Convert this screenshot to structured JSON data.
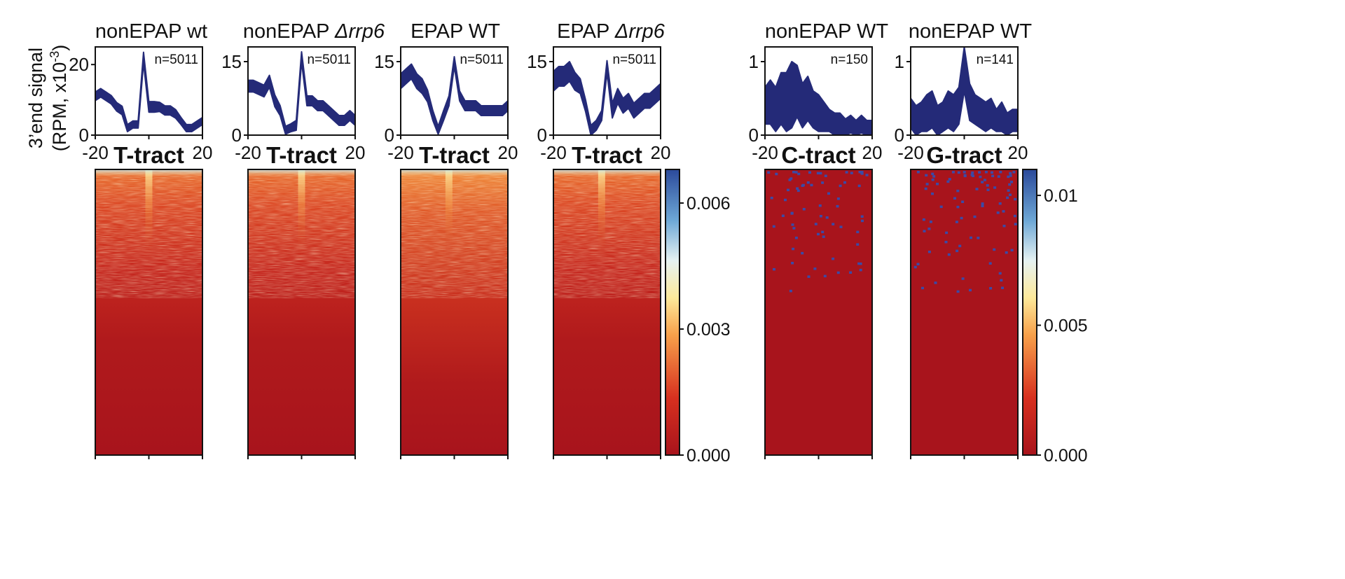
{
  "y_axis_label": {
    "line1": "3’end signal",
    "line2": "(RPM, x10",
    "exp": "-3",
    "close": ")"
  },
  "x_ticks": [
    "-20",
    "20"
  ],
  "colors": {
    "trace": "#242a78",
    "hm_low": "#a8141c",
    "hm_mid": "#fde99a",
    "hm_high": "#2b4a9b",
    "dot": "#3b4aa6"
  },
  "colorbars": [
    {
      "ticks": [
        "0.006",
        "0.003",
        "0.000"
      ],
      "values": [
        0.006,
        0.003,
        0.0
      ],
      "max": 0.0068
    },
    {
      "ticks": [
        "0.01",
        "0.005",
        "0.000"
      ],
      "values": [
        0.01,
        0.005,
        0.0
      ],
      "max": 0.011
    }
  ],
  "chart_data": [
    {
      "type": "area",
      "title_main": "nonEPAP wt",
      "title_italic": "",
      "n_label": "n=5011",
      "tract": "T-tract",
      "xlabel": "",
      "ylabel": "3’end signal (RPM, x10-3)",
      "xlim": [
        -20,
        20
      ],
      "ylim": [
        0,
        25
      ],
      "yticks": [
        "20",
        "0"
      ],
      "ytick_values": [
        20,
        0
      ],
      "x": [
        -20,
        -18,
        -16,
        -14,
        -12,
        -10,
        -8,
        -6,
        -4,
        -2,
        0,
        2,
        4,
        6,
        8,
        10,
        12,
        14,
        16,
        18,
        20
      ],
      "mean": [
        11,
        12,
        11,
        10,
        8,
        7,
        2,
        3,
        3,
        22,
        8,
        8,
        8,
        7,
        7,
        6,
        4,
        2,
        2,
        3,
        4
      ],
      "spread": [
        1.2,
        1.2,
        1.2,
        1.2,
        1.2,
        1.2,
        1,
        1,
        1,
        1.5,
        1.5,
        1.5,
        1.3,
        1.3,
        1.3,
        1.2,
        1,
        1,
        1,
        1,
        1
      ],
      "heatmap": {
        "type": "heatmap",
        "pattern": "T-tract",
        "colorbar": 0,
        "peak_x": 0,
        "rows": 5011
      }
    },
    {
      "type": "area",
      "title_main": "nonEPAP ",
      "title_italic": "Δrrp6",
      "n_label": "n=5011",
      "tract": "T-tract",
      "xlabel": "",
      "ylabel": "",
      "xlim": [
        -20,
        20
      ],
      "ylim": [
        0,
        18
      ],
      "yticks": [
        "15",
        "0"
      ],
      "ytick_values": [
        15,
        0
      ],
      "x": [
        -20,
        -18,
        -16,
        -14,
        -12,
        -10,
        -8,
        -6,
        -4,
        -2,
        0,
        2,
        4,
        6,
        8,
        10,
        12,
        14,
        16,
        18,
        20
      ],
      "mean": [
        10,
        10,
        9.5,
        9,
        11,
        7,
        5,
        1,
        1.5,
        2,
        16,
        7,
        7,
        6,
        6,
        5,
        4,
        3,
        3,
        4,
        3
      ],
      "spread": [
        1.2,
        1.2,
        1.2,
        1.2,
        1.2,
        1.2,
        1,
        0.8,
        0.8,
        1,
        1,
        1,
        1,
        1,
        1,
        1,
        1,
        1,
        1,
        1,
        1
      ],
      "heatmap": {
        "type": "heatmap",
        "pattern": "T-tract",
        "colorbar": 0,
        "peak_x": 0,
        "rows": 5011
      }
    },
    {
      "type": "area",
      "title_main": "EPAP WT",
      "title_italic": "",
      "n_label": "n=5011",
      "tract": "T-tract",
      "xlabel": "",
      "ylabel": "",
      "xlim": [
        -20,
        20
      ],
      "ylim": [
        0,
        18
      ],
      "yticks": [
        "15",
        "0"
      ],
      "ytick_values": [
        15,
        0
      ],
      "x": [
        -20,
        -18,
        -16,
        -14,
        -12,
        -10,
        -8,
        -6,
        -4,
        -2,
        0,
        2,
        4,
        6,
        8,
        10,
        12,
        14,
        16,
        18,
        20
      ],
      "mean": [
        11,
        12,
        13,
        11,
        10,
        8,
        4,
        1,
        4,
        7,
        15,
        8,
        6,
        6,
        6,
        5,
        5,
        5,
        5,
        5,
        6
      ],
      "spread": [
        1.5,
        1.5,
        1.5,
        1.5,
        1.5,
        1.2,
        1,
        0.8,
        1,
        1,
        1,
        1,
        1,
        1,
        1,
        1,
        1,
        1,
        1,
        1,
        1
      ],
      "heatmap": {
        "type": "heatmap",
        "pattern": "T-tract",
        "colorbar": 0,
        "peak_x": -2,
        "rows": 5011
      }
    },
    {
      "type": "area",
      "title_main": "EPAP ",
      "title_italic": "Δrrp6",
      "n_label": "n=5011",
      "tract": "T-tract",
      "xlabel": "",
      "ylabel": "",
      "xlim": [
        -20,
        20
      ],
      "ylim": [
        0,
        18
      ],
      "yticks": [
        "15",
        "0"
      ],
      "ytick_values": [
        15,
        0
      ],
      "x": [
        -20,
        -18,
        -16,
        -14,
        -12,
        -10,
        -8,
        -6,
        -4,
        -2,
        0,
        2,
        4,
        6,
        8,
        10,
        12,
        14,
        16,
        18,
        20
      ],
      "mean": [
        11,
        12,
        12,
        13,
        11,
        10,
        6,
        1,
        2,
        4,
        14,
        5,
        8,
        6,
        7,
        5,
        6,
        7,
        7,
        8,
        9
      ],
      "spread": [
        2,
        2,
        2,
        2,
        1.8,
        1.5,
        1.2,
        1,
        1,
        1,
        1.2,
        1.5,
        1.5,
        1.5,
        1.5,
        1.5,
        1.5,
        1.5,
        1.5,
        1.5,
        1.5
      ],
      "heatmap": {
        "type": "heatmap",
        "pattern": "T-tract",
        "colorbar": 0,
        "peak_x": -2,
        "rows": 5011
      }
    },
    {
      "type": "area",
      "title_main": "nonEPAP WT",
      "title_italic": "",
      "n_label": "n=150",
      "tract": "C-tract",
      "xlabel": "",
      "ylabel": "",
      "xlim": [
        -20,
        20
      ],
      "ylim": [
        0,
        1.2
      ],
      "yticks": [
        "1",
        "0"
      ],
      "ytick_values": [
        1,
        0
      ],
      "x": [
        -20,
        -18,
        -16,
        -14,
        -12,
        -10,
        -8,
        -6,
        -4,
        -2,
        0,
        2,
        4,
        6,
        8,
        10,
        12,
        14,
        16,
        18,
        20
      ],
      "mean": [
        0.4,
        0.45,
        0.35,
        0.5,
        0.45,
        0.55,
        0.6,
        0.4,
        0.5,
        0.35,
        0.3,
        0.25,
        0.2,
        0.15,
        0.15,
        0.1,
        0.15,
        0.1,
        0.15,
        0.1,
        0.1
      ],
      "spread": [
        0.25,
        0.3,
        0.3,
        0.35,
        0.4,
        0.45,
        0.35,
        0.3,
        0.3,
        0.25,
        0.25,
        0.2,
        0.15,
        0.15,
        0.15,
        0.12,
        0.12,
        0.1,
        0.12,
        0.1,
        0.1
      ],
      "heatmap": {
        "type": "heatmap",
        "pattern": "sparse",
        "colorbar": 1,
        "rows": 150,
        "dot_count": 70,
        "seed": 7
      }
    },
    {
      "type": "area",
      "title_main": "nonEPAP WT",
      "title_italic": "",
      "n_label": "n=141",
      "tract": "G-tract",
      "xlabel": "",
      "ylabel": "",
      "xlim": [
        -20,
        20
      ],
      "ylim": [
        0,
        1.2
      ],
      "yticks": [
        "1",
        "0"
      ],
      "ytick_values": [
        1,
        0
      ],
      "x": [
        -20,
        -18,
        -16,
        -14,
        -12,
        -10,
        -8,
        -6,
        -4,
        -2,
        0,
        2,
        4,
        6,
        8,
        10,
        12,
        14,
        16,
        18,
        20
      ],
      "mean": [
        0.3,
        0.2,
        0.25,
        0.3,
        0.35,
        0.2,
        0.25,
        0.35,
        0.3,
        0.4,
        0.9,
        0.45,
        0.35,
        0.3,
        0.25,
        0.3,
        0.2,
        0.25,
        0.15,
        0.2,
        0.2
      ],
      "spread": [
        0.2,
        0.2,
        0.2,
        0.25,
        0.25,
        0.2,
        0.2,
        0.25,
        0.25,
        0.25,
        0.3,
        0.25,
        0.2,
        0.2,
        0.2,
        0.2,
        0.15,
        0.2,
        0.15,
        0.15,
        0.15
      ],
      "heatmap": {
        "type": "heatmap",
        "pattern": "sparse",
        "colorbar": 1,
        "rows": 141,
        "dot_count": 85,
        "seed": 13
      }
    }
  ]
}
